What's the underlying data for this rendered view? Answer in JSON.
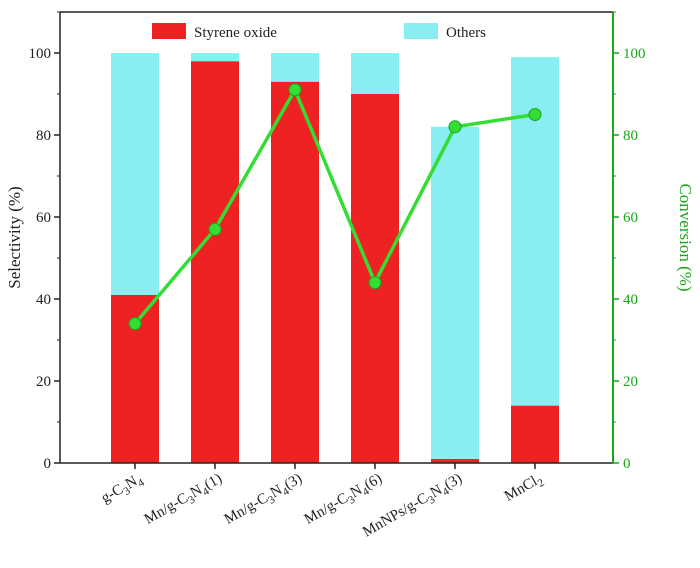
{
  "chart_data": {
    "type": "bar",
    "stacked": true,
    "categories": [
      {
        "base": "g-C",
        "sub1": "3",
        "mid": "N",
        "sub2": "4",
        "tail": ""
      },
      {
        "base": "Mn/g-C",
        "sub1": "3",
        "mid": "N",
        "sub2": "4",
        "tail": "(1)"
      },
      {
        "base": "Mn/g-C",
        "sub1": "3",
        "mid": "N",
        "sub2": "4",
        "tail": "(3)"
      },
      {
        "base": "Mn/g-C",
        "sub1": "3",
        "mid": "N",
        "sub2": "4",
        "tail": "(6)"
      },
      {
        "base": "MnNPs/g-C",
        "sub1": "3",
        "mid": "N",
        "sub2": "4",
        "tail": "(3)"
      },
      {
        "base": "MnCl",
        "sub1": "2",
        "mid": "",
        "sub2": "",
        "tail": ""
      }
    ],
    "series": [
      {
        "name": "Styrene oxide",
        "color": "#ee2222",
        "values": [
          41,
          98,
          93,
          90,
          1,
          14
        ]
      },
      {
        "name": "Others",
        "color": "#88eef2",
        "values": [
          59,
          2,
          7,
          10,
          81,
          85
        ]
      }
    ],
    "line_series": {
      "name": "Conversion",
      "color": "#33dd33",
      "axis": "right",
      "values": [
        34,
        57,
        91,
        44,
        82,
        85
      ]
    },
    "ylabel": "Selectivity (%)",
    "ylabel_right": "Conversion (%)",
    "ylim": [
      0,
      110
    ],
    "ylim_right": [
      0,
      110
    ],
    "yticks": [
      "0",
      "20",
      "40",
      "60",
      "80",
      "100"
    ],
    "yticks_right": [
      "0",
      "20",
      "40",
      "60",
      "80",
      "100"
    ],
    "right_axis_color": "#1aa51a",
    "legend_placement": "top",
    "grid": false
  }
}
